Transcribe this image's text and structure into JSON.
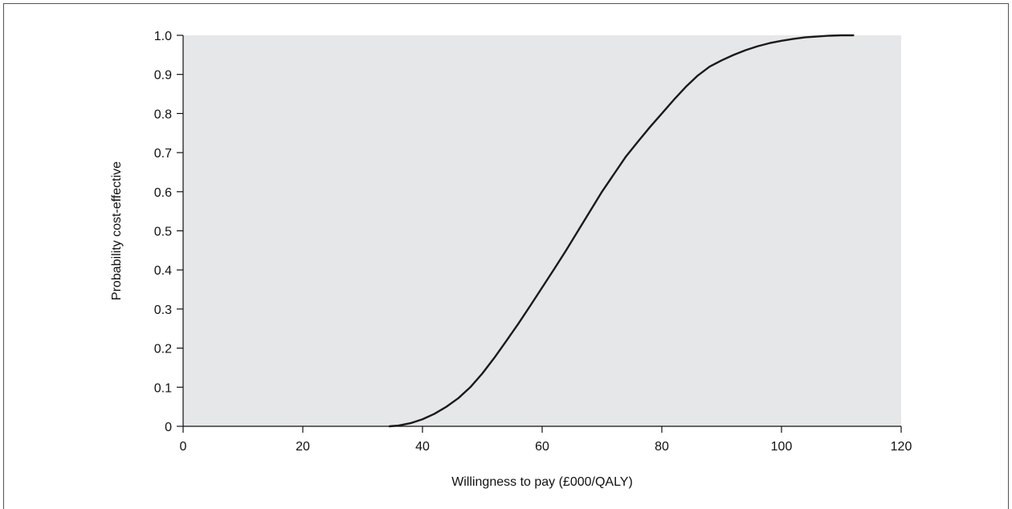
{
  "chart_data": {
    "type": "line",
    "title": "",
    "xlabel": "Willingness to pay (£000/QALY)",
    "ylabel": "Probability cost-effective",
    "xlim": [
      0,
      120
    ],
    "ylim": [
      0,
      1.0
    ],
    "x_ticks": [
      0,
      20,
      40,
      60,
      80,
      100,
      120
    ],
    "x_tick_labels": [
      "0",
      "20",
      "40",
      "60",
      "80",
      "100",
      "120"
    ],
    "y_ticks": [
      0,
      0.1,
      0.2,
      0.3,
      0.4,
      0.5,
      0.6,
      0.7,
      0.8,
      0.9,
      1.0
    ],
    "y_tick_labels": [
      "0",
      "0.1",
      "0.2",
      "0.3",
      "0.4",
      "0.5",
      "0.6",
      "0.7",
      "0.8",
      "0.9",
      "1.0"
    ],
    "grid": false,
    "background": "#e6e7e8",
    "line_color": "#1a1a1a",
    "series": [
      {
        "x": [
          34.5,
          36,
          38,
          40,
          42,
          44,
          46,
          48,
          50,
          52,
          54,
          56,
          58,
          60,
          62,
          64,
          66,
          68,
          70,
          72,
          74,
          76,
          78,
          80,
          82,
          84,
          86,
          88,
          90,
          92,
          94,
          96,
          98,
          100,
          102,
          104,
          106,
          108,
          110,
          112
        ],
        "y": [
          0.0,
          0.002,
          0.008,
          0.018,
          0.032,
          0.05,
          0.072,
          0.1,
          0.135,
          0.175,
          0.218,
          0.262,
          0.308,
          0.355,
          0.402,
          0.45,
          0.5,
          0.55,
          0.6,
          0.645,
          0.69,
          0.728,
          0.765,
          0.8,
          0.835,
          0.868,
          0.897,
          0.92,
          0.936,
          0.95,
          0.962,
          0.972,
          0.98,
          0.986,
          0.991,
          0.995,
          0.997,
          0.999,
          1.0,
          1.0
        ]
      }
    ]
  }
}
